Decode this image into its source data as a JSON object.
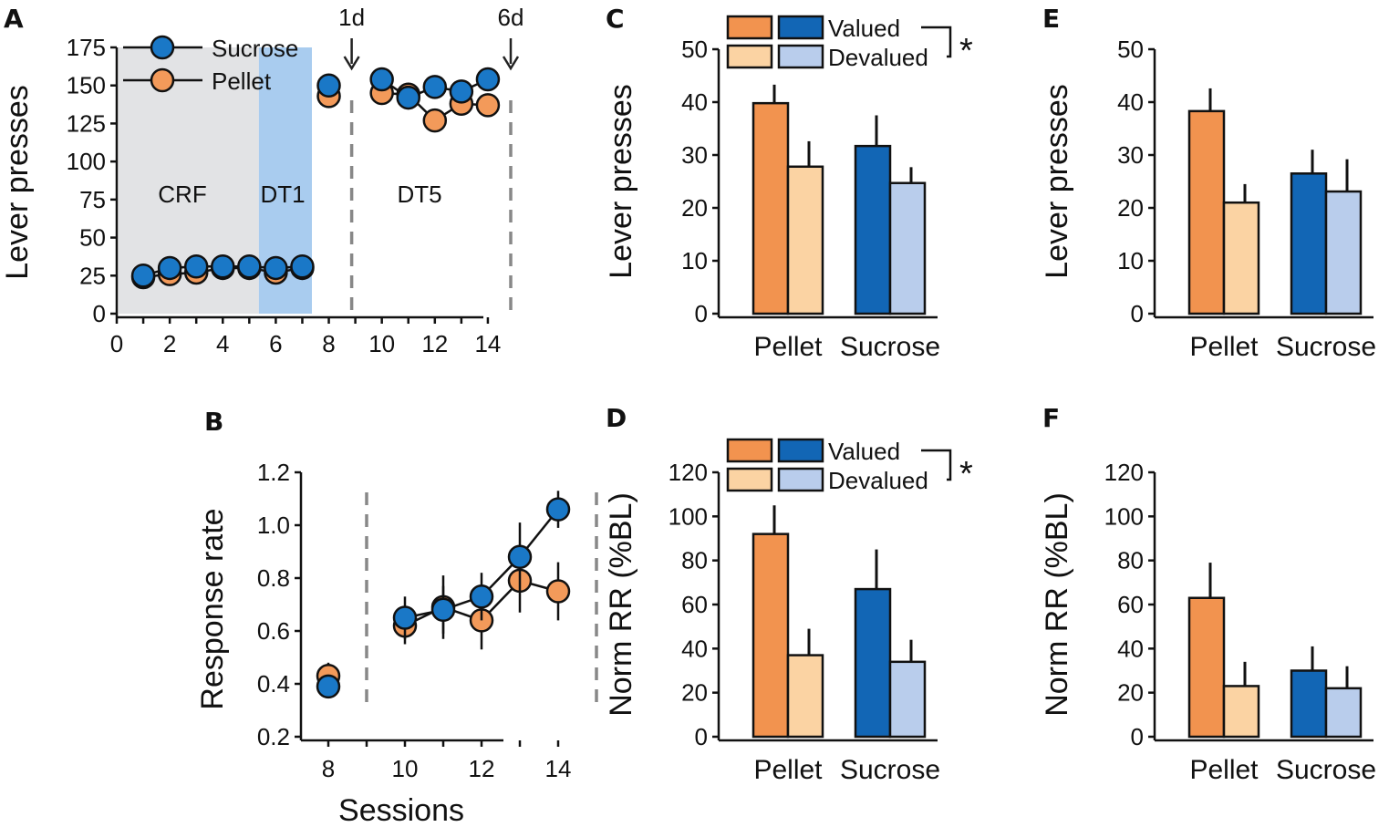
{
  "colors": {
    "pellet_valued": "#f2934f",
    "pellet_devalued": "#fbd3a3",
    "sucrose_valued": "#1266b5",
    "sucrose_devalued": "#b9cdec",
    "sucrose_marker": "#1a78c7",
    "pellet_marker": "#f39a5a",
    "crf_shade": "#e2e3e5",
    "dt1_shade": "#a9ccef",
    "dashed": "#888888"
  },
  "panel_labels": {
    "A": "A",
    "B": "B",
    "C": "C",
    "D": "D",
    "E": "E",
    "F": "F"
  },
  "legend": {
    "valued": "Valued",
    "devalued": "Devalued",
    "significance": "*"
  },
  "chart_data": [
    {
      "id": "A",
      "type": "line",
      "ylabel": "Lever presses",
      "xlabel": "",
      "xlim": [
        0,
        15
      ],
      "ylim": [
        0,
        175
      ],
      "xticks": [
        "0",
        "2",
        "4",
        "6",
        "8",
        "10",
        "12",
        "14"
      ],
      "yticks": [
        "0",
        "25",
        "50",
        "75",
        "100",
        "125",
        "150",
        "175"
      ],
      "phase_labels": {
        "crf": "CRF",
        "dt1": "DT1",
        "dt5": "DT5"
      },
      "shaded_regions": [
        {
          "name": "CRF",
          "from": 0.2,
          "to": 5.5
        },
        {
          "name": "DT1",
          "from": 5.5,
          "to": 7.5
        }
      ],
      "markers": [
        {
          "label": "1d",
          "x": 9
        },
        {
          "label": "6d",
          "x": 15
        }
      ],
      "legend": [
        "Sucrose",
        "Pellet"
      ],
      "series": [
        {
          "name": "Sucrose",
          "segments": [
            [
              {
                "x": 1,
                "y": 25
              },
              {
                "x": 2,
                "y": 30
              },
              {
                "x": 3,
                "y": 31
              },
              {
                "x": 4,
                "y": 31
              },
              {
                "x": 5,
                "y": 31
              },
              {
                "x": 6,
                "y": 30
              },
              {
                "x": 7,
                "y": 31
              }
            ],
            [
              {
                "x": 8,
                "y": 150
              }
            ],
            [
              {
                "x": 10,
                "y": 154
              },
              {
                "x": 11,
                "y": 142
              },
              {
                "x": 12,
                "y": 149
              },
              {
                "x": 13,
                "y": 146
              },
              {
                "x": 14,
                "y": 154
              }
            ]
          ]
        },
        {
          "name": "Pellet",
          "segments": [
            [
              {
                "x": 1,
                "y": 24
              },
              {
                "x": 2,
                "y": 26
              },
              {
                "x": 3,
                "y": 27
              },
              {
                "x": 4,
                "y": 30
              },
              {
                "x": 5,
                "y": 30
              },
              {
                "x": 6,
                "y": 27
              },
              {
                "x": 7,
                "y": 30
              }
            ],
            [
              {
                "x": 8,
                "y": 143
              }
            ],
            [
              {
                "x": 10,
                "y": 145
              },
              {
                "x": 11,
                "y": 144
              },
              {
                "x": 12,
                "y": 127
              },
              {
                "x": 13,
                "y": 138
              },
              {
                "x": 14,
                "y": 137
              }
            ]
          ]
        }
      ]
    },
    {
      "id": "B",
      "type": "line",
      "ylabel": "Response rate",
      "xlabel": "Sessions",
      "xlim": [
        7.3,
        15
      ],
      "ylim": [
        0.2,
        1.2
      ],
      "xticks": [
        "8",
        "10",
        "12",
        "14"
      ],
      "yticks": [
        "0.2",
        "0.4",
        "0.6",
        "0.8",
        "1.0",
        "1.2"
      ],
      "dashed_lines": [
        9,
        15
      ],
      "series": [
        {
          "name": "Pellet",
          "segments": [
            [
              {
                "x": 8,
                "y": 0.43,
                "err": 0.05
              }
            ],
            [
              {
                "x": 10,
                "y": 0.62,
                "err": 0.07
              },
              {
                "x": 11,
                "y": 0.69,
                "err": 0.12
              },
              {
                "x": 12,
                "y": 0.64,
                "err": 0.11
              },
              {
                "x": 13,
                "y": 0.79,
                "err": 0.12
              },
              {
                "x": 14,
                "y": 0.75,
                "err": 0.11
              }
            ]
          ]
        },
        {
          "name": "Sucrose",
          "segments": [
            [
              {
                "x": 8,
                "y": 0.39,
                "err": 0.03
              }
            ],
            [
              {
                "x": 10,
                "y": 0.65,
                "err": 0.08
              },
              {
                "x": 11,
                "y": 0.68,
                "err": 0.09
              },
              {
                "x": 12,
                "y": 0.73,
                "err": 0.09
              },
              {
                "x": 13,
                "y": 0.88,
                "err": 0.13
              },
              {
                "x": 14,
                "y": 1.06,
                "err": 0.07
              }
            ]
          ]
        }
      ]
    },
    {
      "id": "C",
      "type": "bar",
      "ylabel": "Lever presses",
      "categories": [
        "Pellet",
        "Sucrose"
      ],
      "ylim": [
        0,
        50
      ],
      "yticks": [
        "0",
        "10",
        "20",
        "30",
        "40",
        "50"
      ],
      "series": [
        {
          "name": "Valued",
          "values": [
            39.8,
            31.7
          ],
          "errors": [
            3.5,
            5.8
          ]
        },
        {
          "name": "Devalued",
          "values": [
            27.8,
            24.7
          ],
          "errors": [
            4.8,
            3.0
          ]
        }
      ],
      "significance": true
    },
    {
      "id": "D",
      "type": "bar",
      "ylabel": "Norm RR (%BL)",
      "categories": [
        "Pellet",
        "Sucrose"
      ],
      "ylim": [
        0,
        120
      ],
      "yticks": [
        "0",
        "20",
        "40",
        "60",
        "80",
        "100",
        "120"
      ],
      "series": [
        {
          "name": "Valued",
          "values": [
            92,
            67
          ],
          "errors": [
            13,
            18
          ]
        },
        {
          "name": "Devalued",
          "values": [
            37,
            34
          ],
          "errors": [
            12,
            10
          ]
        }
      ],
      "significance": true
    },
    {
      "id": "E",
      "type": "bar",
      "ylabel": "Lever presses",
      "categories": [
        "Pellet",
        "Sucrose"
      ],
      "ylim": [
        0,
        50
      ],
      "yticks": [
        "0",
        "10",
        "20",
        "30",
        "40",
        "50"
      ],
      "series": [
        {
          "name": "Valued",
          "values": [
            38.3,
            26.5
          ],
          "errors": [
            4.3,
            4.5
          ]
        },
        {
          "name": "Devalued",
          "values": [
            21.0,
            23.1
          ],
          "errors": [
            3.5,
            6.1
          ]
        }
      ],
      "significance": false
    },
    {
      "id": "F",
      "type": "bar",
      "ylabel": "Norm RR (%BL)",
      "categories": [
        "Pellet",
        "Sucrose"
      ],
      "ylim": [
        0,
        120
      ],
      "yticks": [
        "0",
        "20",
        "40",
        "60",
        "80",
        "100",
        "120"
      ],
      "series": [
        {
          "name": "Valued",
          "values": [
            63,
            30
          ],
          "errors": [
            16,
            11
          ]
        },
        {
          "name": "Devalued",
          "values": [
            23,
            22
          ],
          "errors": [
            11,
            10
          ]
        }
      ],
      "significance": false
    }
  ]
}
